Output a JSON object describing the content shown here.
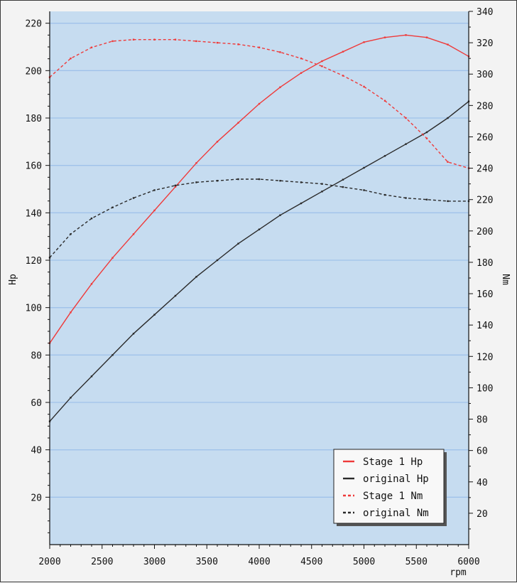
{
  "chart_data": {
    "type": "line",
    "title": "",
    "xlabel": "rpm",
    "ylabel_left": "Hp",
    "ylabel_right": "Nm",
    "xlim": [
      2000,
      6000
    ],
    "ylim_left": [
      0,
      225
    ],
    "ylim_right": [
      0,
      340
    ],
    "x_ticks": [
      2000,
      2500,
      3000,
      3500,
      4000,
      4500,
      5000,
      5500,
      6000
    ],
    "y_left_ticks": [
      20,
      40,
      60,
      80,
      100,
      120,
      140,
      160,
      180,
      200,
      220
    ],
    "y_right_ticks": [
      20,
      40,
      60,
      80,
      100,
      120,
      140,
      160,
      180,
      200,
      220,
      240,
      260,
      280,
      300,
      320,
      340
    ],
    "grid": true,
    "legend_position": "bottom-right",
    "colors": {
      "background": "#c6dcf0",
      "grid": "#9fc2ea",
      "stage1": "#ef3a3a",
      "original": "#2a2a2a"
    },
    "series": [
      {
        "name": "Stage 1 Hp",
        "axis": "left",
        "style": "solid",
        "color": "#ef3a3a",
        "x": [
          2000,
          2200,
          2400,
          2600,
          2800,
          3000,
          3200,
          3400,
          3600,
          3800,
          4000,
          4200,
          4400,
          4600,
          4800,
          5000,
          5200,
          5400,
          5600,
          5800,
          6000
        ],
        "values": [
          85,
          98,
          110,
          121,
          131,
          141,
          151,
          161,
          170,
          178,
          186,
          193,
          199,
          204,
          208,
          212,
          214,
          215,
          214,
          211,
          206
        ]
      },
      {
        "name": "original Hp",
        "axis": "left",
        "style": "solid",
        "color": "#2a2a2a",
        "x": [
          2000,
          2200,
          2400,
          2600,
          2800,
          3000,
          3200,
          3400,
          3600,
          3800,
          4000,
          4200,
          4400,
          4600,
          4800,
          5000,
          5200,
          5400,
          5600,
          5800,
          6000
        ],
        "values": [
          52,
          62,
          71,
          80,
          89,
          97,
          105,
          113,
          120,
          127,
          133,
          139,
          144,
          149,
          154,
          159,
          164,
          169,
          174,
          180,
          187
        ]
      },
      {
        "name": "Stage 1 Nm",
        "axis": "right",
        "style": "dashed",
        "color": "#ef3a3a",
        "x": [
          2000,
          2200,
          2400,
          2600,
          2800,
          3000,
          3200,
          3400,
          3600,
          3800,
          4000,
          4200,
          4400,
          4600,
          4800,
          5000,
          5200,
          5400,
          5600,
          5800,
          6000
        ],
        "values": [
          298,
          310,
          317,
          321,
          322,
          322,
          322,
          321,
          320,
          319,
          317,
          314,
          310,
          305,
          299,
          292,
          283,
          272,
          259,
          244,
          240
        ]
      },
      {
        "name": "original Nm",
        "axis": "right",
        "style": "dashed",
        "color": "#2a2a2a",
        "x": [
          2000,
          2200,
          2400,
          2600,
          2800,
          3000,
          3200,
          3400,
          3600,
          3800,
          4000,
          4200,
          4400,
          4600,
          4800,
          5000,
          5200,
          5400,
          5600,
          5800,
          6000
        ],
        "values": [
          183,
          198,
          208,
          215,
          221,
          226,
          229,
          231,
          232,
          233,
          233,
          232,
          231,
          230,
          228,
          226,
          223,
          221,
          220,
          219,
          219
        ]
      }
    ]
  }
}
